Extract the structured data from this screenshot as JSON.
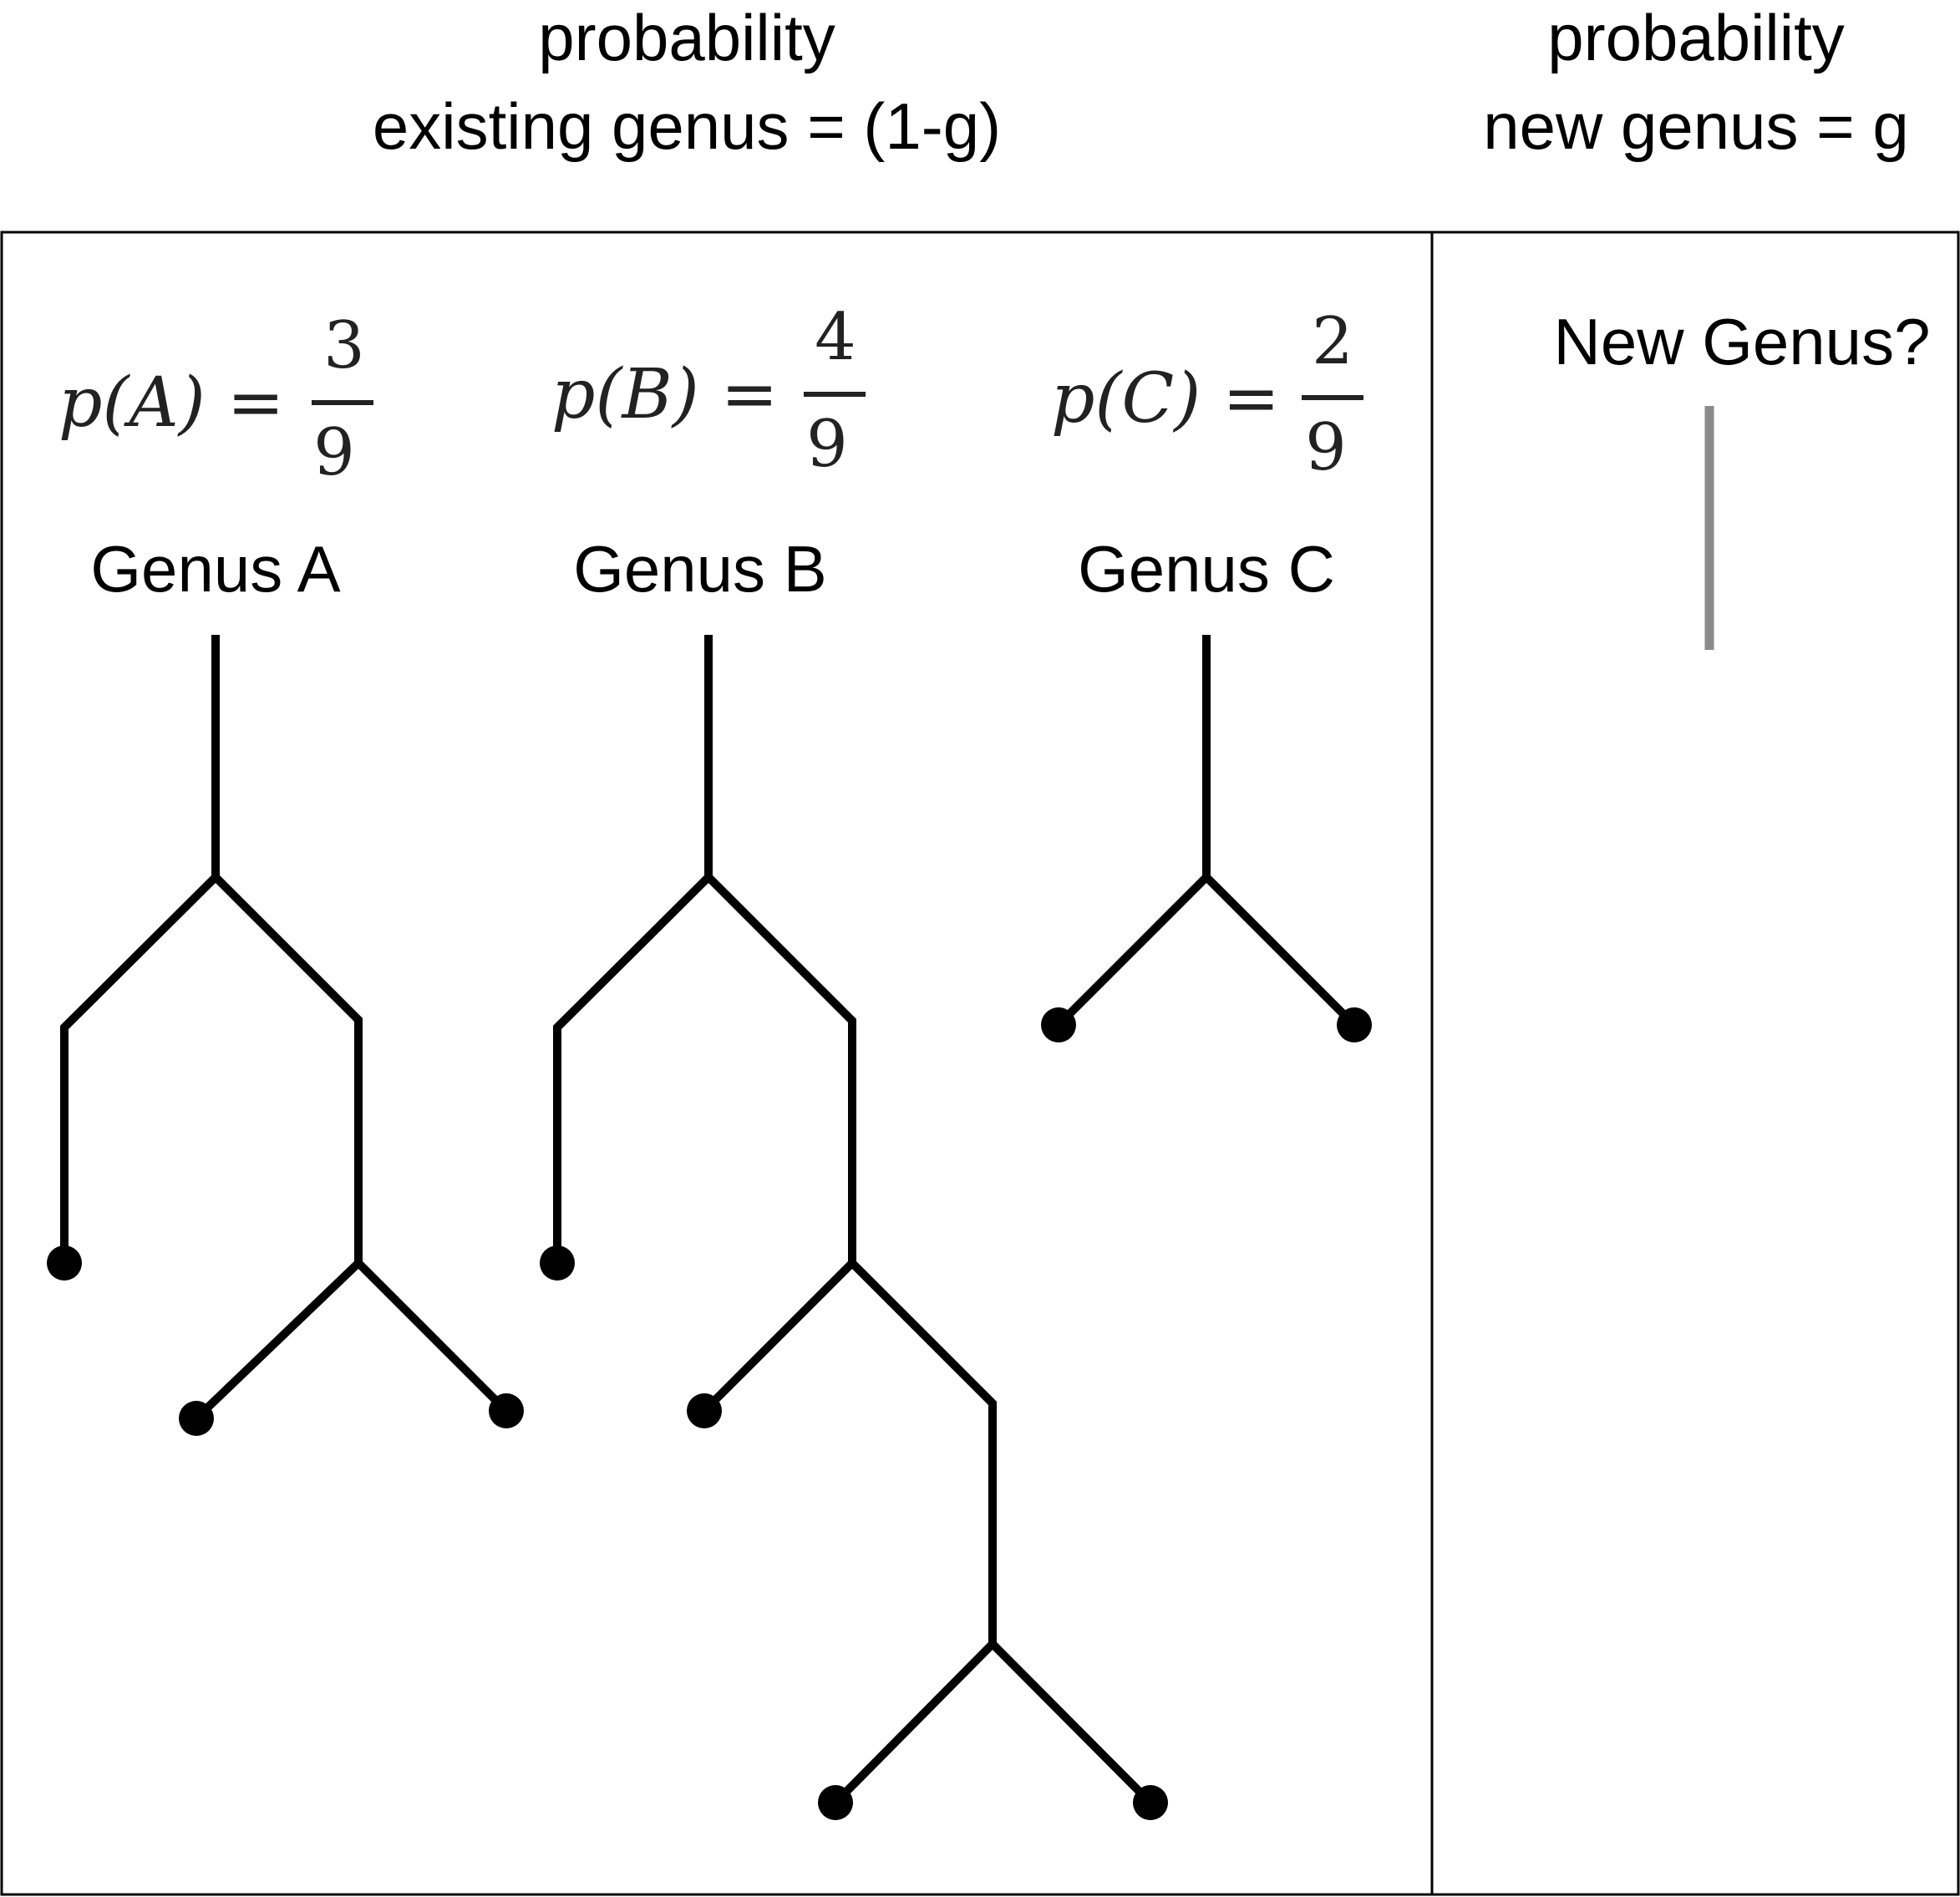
{
  "header": {
    "left_line1": "probability",
    "left_line2": "existing genus = (1-g)",
    "right_line1": "probability",
    "right_line2": "new genus = g"
  },
  "genera": [
    {
      "label": "Genus A",
      "prob_lhs": "p(A) =",
      "numerator": "3",
      "denominator": "9"
    },
    {
      "label": "Genus B",
      "prob_lhs": "p(B) =",
      "numerator": "4",
      "denominator": "9"
    },
    {
      "label": "Genus C",
      "prob_lhs": "p(C) =",
      "numerator": "2",
      "denominator": "9"
    }
  ],
  "new_genus": {
    "label": "New Genus?"
  },
  "colors": {
    "line": "#000000",
    "new_branch": "#8a8a8a",
    "background": "#ffffff"
  }
}
